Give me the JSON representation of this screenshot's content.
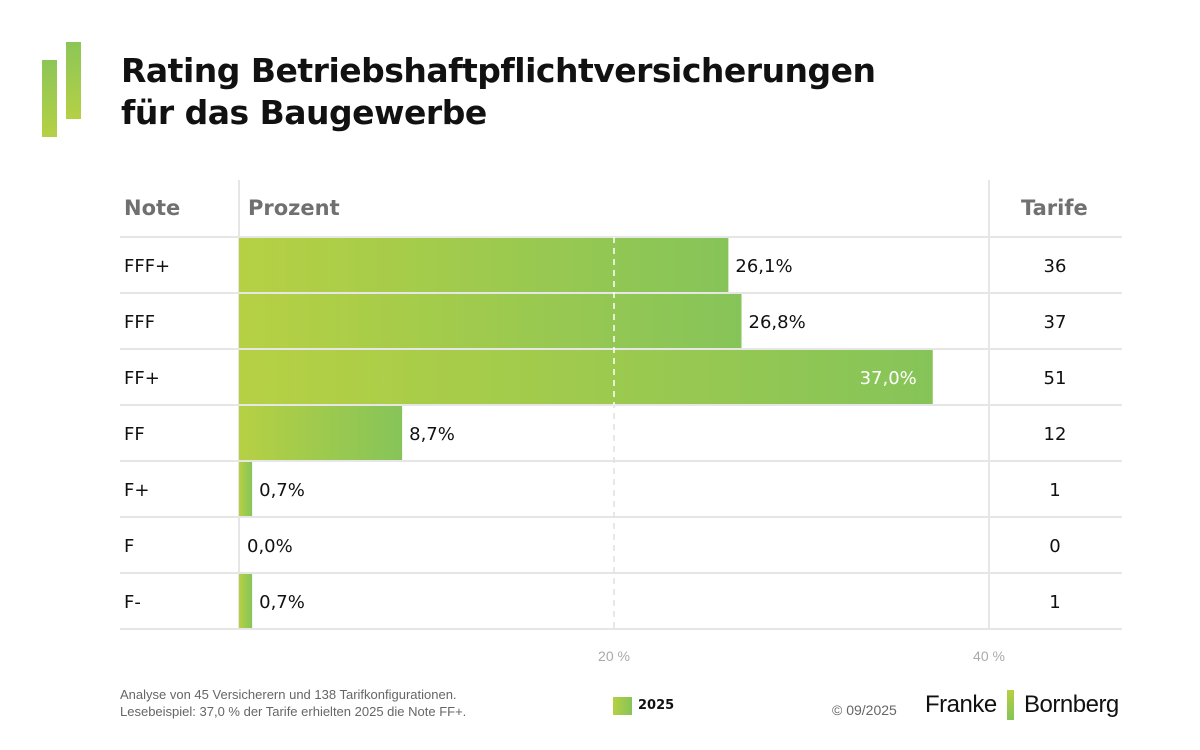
{
  "title_line1": "Rating Betriebshaftpflichtversicherungen",
  "title_line2": "für das Baugewerbe",
  "colors": {
    "bar_start": "#b6d043",
    "bar_end": "#86c459",
    "grid": "#e6e6e6"
  },
  "chart_data": {
    "type": "bar",
    "orientation": "horizontal",
    "columns": {
      "note": "Note",
      "percent": "Prozent",
      "tariffs": "Tarife"
    },
    "categories": [
      "FFF+",
      "FFF",
      "FF+",
      "FF",
      "F+",
      "F",
      "F-"
    ],
    "series": [
      {
        "name": "2025",
        "values": [
          26.1,
          26.8,
          37.0,
          8.7,
          0.7,
          0.0,
          0.7
        ]
      }
    ],
    "value_labels": [
      "26,1%",
      "26,8%",
      "37,0%",
      "8,7%",
      "0,7%",
      "0,0%",
      "0,7%"
    ],
    "tariffs": [
      36,
      37,
      51,
      12,
      1,
      0,
      1
    ],
    "xlim": [
      0,
      40
    ],
    "x_ticks": [
      20,
      40
    ],
    "x_tick_labels": [
      "20 %",
      "40 %"
    ],
    "legend": "bottom-center"
  },
  "footer": {
    "note1": "Analyse von 45 Versicherern und 138 Tarifkonfigurationen.",
    "note2": "Lesebeispiel: 37,0 % der Tarife erhielten 2025 die Note FF+.",
    "legend_label": "2025",
    "copyright": "© 09/2025",
    "brand_left": "Franke",
    "brand_right": "Bornberg"
  }
}
